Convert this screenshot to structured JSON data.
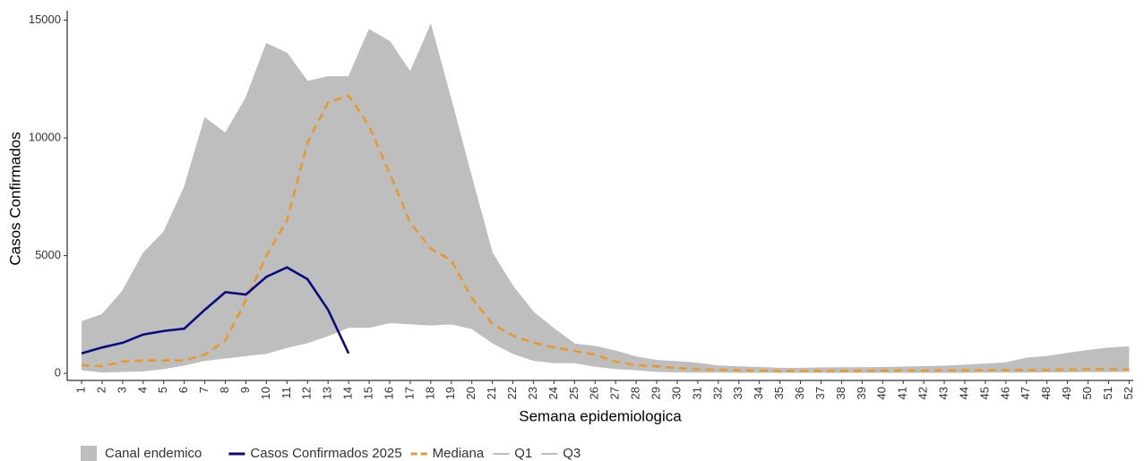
{
  "chart_data": {
    "type": "endemic_channel",
    "x_label": "Semana epidemiologica",
    "y_label": "Casos Confirmados",
    "x": [
      1,
      2,
      3,
      4,
      5,
      6,
      7,
      8,
      9,
      10,
      11,
      12,
      13,
      14,
      15,
      16,
      17,
      18,
      19,
      20,
      21,
      22,
      23,
      24,
      25,
      26,
      27,
      28,
      29,
      30,
      31,
      32,
      33,
      34,
      35,
      36,
      37,
      38,
      39,
      40,
      41,
      42,
      43,
      44,
      45,
      46,
      47,
      48,
      49,
      50,
      51,
      52
    ],
    "xlim": [
      0.3,
      52.2
    ],
    "xticks": [
      1,
      2,
      3,
      4,
      5,
      6,
      7,
      8,
      9,
      10,
      11,
      12,
      13,
      14,
      15,
      16,
      17,
      18,
      19,
      20,
      21,
      22,
      23,
      24,
      25,
      26,
      27,
      28,
      29,
      30,
      31,
      32,
      33,
      34,
      35,
      36,
      37,
      38,
      39,
      40,
      41,
      42,
      43,
      44,
      45,
      46,
      47,
      48,
      49,
      50,
      51,
      52
    ],
    "ylim": [
      -300,
      15400
    ],
    "yticks": [
      0,
      5000,
      10000,
      15000
    ],
    "area": {
      "name": "Canal endemico",
      "color": "#bebebe"
    },
    "series": [
      {
        "name": "Q1",
        "color": "#bebebe",
        "role": "lower",
        "values": [
          150,
          50,
          80,
          100,
          200,
          350,
          550,
          650,
          750,
          850,
          1100,
          1300,
          1600,
          1950,
          1950,
          2150,
          2100,
          2050,
          2100,
          1900,
          1300,
          850,
          550,
          450,
          450,
          300,
          200,
          150,
          80,
          60,
          50,
          50,
          40,
          40,
          40,
          40,
          40,
          40,
          40,
          40,
          40,
          40,
          40,
          40,
          50,
          50,
          50,
          60,
          60,
          70,
          70,
          80
        ]
      },
      {
        "name": "Q3",
        "color": "#bebebe",
        "role": "upper",
        "values": [
          2200,
          2500,
          3500,
          5100,
          6000,
          7900,
          10850,
          10200,
          11700,
          14000,
          13600,
          12400,
          12600,
          12600,
          14600,
          14100,
          12800,
          14800,
          11600,
          8300,
          5100,
          3700,
          2600,
          1900,
          1250,
          1150,
          950,
          700,
          550,
          500,
          430,
          320,
          280,
          250,
          220,
          220,
          230,
          240,
          240,
          250,
          270,
          290,
          310,
          350,
          400,
          450,
          650,
          720,
          850,
          980,
          1080,
          1130
        ]
      },
      {
        "name": "Mediana",
        "color": "#e69a2e",
        "dashed": true,
        "values": [
          350,
          300,
          500,
          550,
          550,
          550,
          800,
          1400,
          3100,
          5000,
          6500,
          9800,
          11500,
          11800,
          10500,
          8500,
          6400,
          5300,
          4800,
          3200,
          2100,
          1600,
          1300,
          1100,
          950,
          800,
          500,
          350,
          300,
          220,
          180,
          150,
          130,
          120,
          100,
          100,
          100,
          100,
          110,
          120,
          120,
          120,
          120,
          130,
          130,
          140,
          140,
          150,
          160,
          180,
          170,
          170
        ]
      },
      {
        "name": "Casos Confirmados 2025",
        "color": "#0b0b80",
        "values": [
          850,
          1100,
          1300,
          1650,
          1800,
          1900,
          2700,
          3450,
          3350,
          4100,
          4500,
          4000,
          2700,
          850,
          null,
          null,
          null,
          null,
          null,
          null,
          null,
          null,
          null,
          null,
          null,
          null,
          null,
          null,
          null,
          null,
          null,
          null,
          null,
          null,
          null,
          null,
          null,
          null,
          null,
          null,
          null,
          null,
          null,
          null,
          null,
          null,
          null,
          null,
          null,
          null,
          null,
          null
        ]
      }
    ]
  }
}
